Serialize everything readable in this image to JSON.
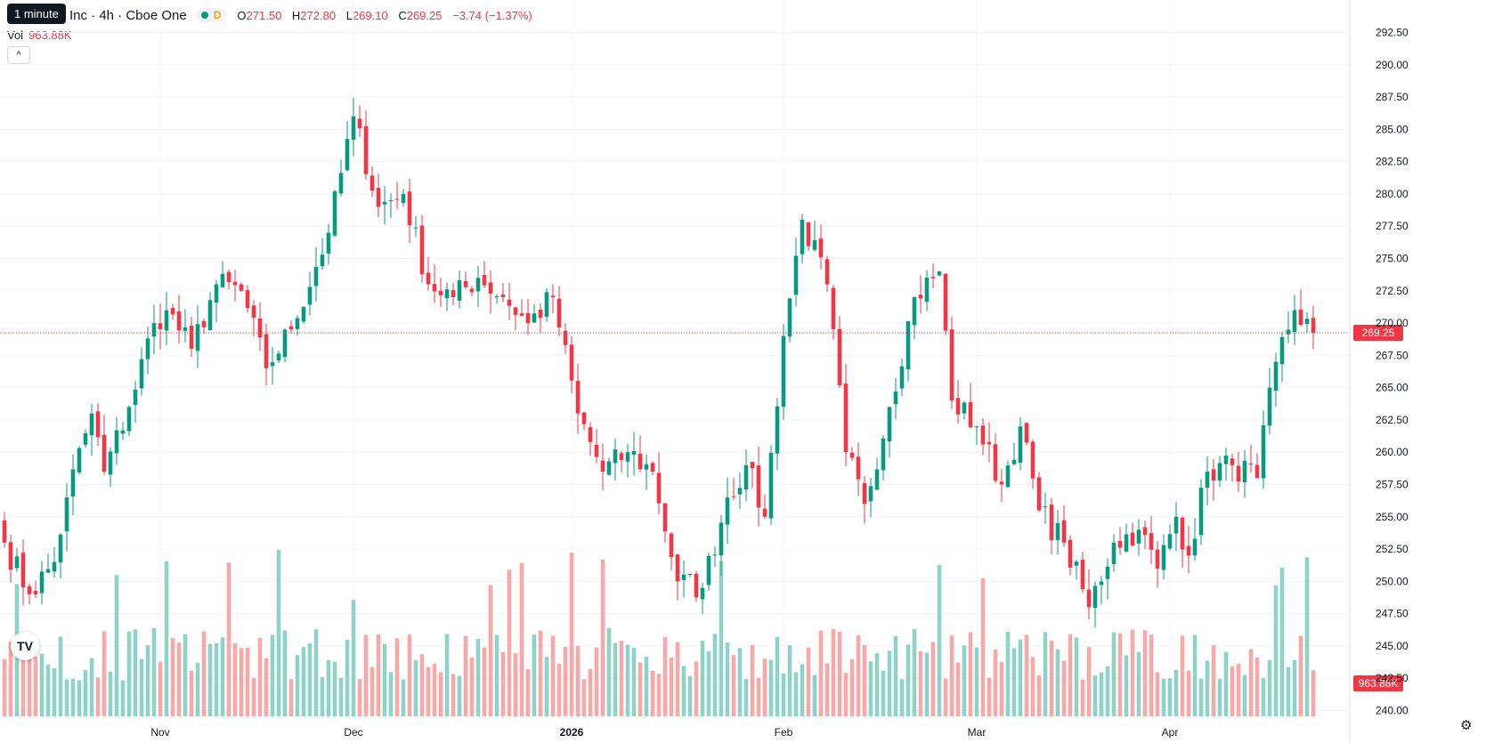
{
  "tooltip": "1 minute",
  "legend": {
    "symbol_name": "Inc · 4h · Cboe One",
    "d_letter": "D",
    "open_key": "O",
    "open_val": "271.50",
    "high_key": "H",
    "high_val": "272.80",
    "low_key": "L",
    "low_val": "269.10",
    "close_key": "C",
    "close_val": "269.25",
    "change": "−3.74 (−1.37%)"
  },
  "volume_legend": {
    "label": "Vol",
    "value": "963.88K"
  },
  "icons": {
    "collapse": "chevron-up-icon",
    "logo": "tradingview-logo-icon",
    "settings": "gear-icon"
  },
  "colors": {
    "up": "#089981",
    "down": "#f23645",
    "up_vol": "#8fd3c8",
    "down_vol": "#f7a9a7",
    "grid": "#f0f3fa"
  },
  "chart_data": {
    "type": "candlestick",
    "timeframe": "4h",
    "ylim": [
      239.0,
      293.5
    ],
    "y_ticks": [
      "240.00",
      "242.50",
      "245.00",
      "247.50",
      "250.00",
      "252.50",
      "255.00",
      "257.50",
      "260.00",
      "262.50",
      "265.00",
      "267.50",
      "270.00",
      "272.50",
      "275.00",
      "277.50",
      "280.00",
      "282.50",
      "285.00",
      "287.50",
      "290.00",
      "292.50"
    ],
    "x_ticks": [
      "Nov",
      "Dec",
      "2026",
      "Feb",
      "Mar",
      "Apr"
    ],
    "x_tick_bold": [
      false,
      false,
      true,
      false,
      false,
      false
    ],
    "x_tick_index": [
      25,
      56,
      91,
      125,
      156,
      187
    ],
    "last_price_label": "269.25",
    "last_volume_label": "963.88K",
    "grid": true,
    "anchors": [
      [
        0,
        253.0
      ],
      [
        4,
        249.0
      ],
      [
        8,
        251.5
      ],
      [
        10,
        256.5
      ],
      [
        14,
        263.0
      ],
      [
        16,
        258.5
      ],
      [
        20,
        263.5
      ],
      [
        24,
        270.0
      ],
      [
        26,
        271.0
      ],
      [
        30,
        268.0
      ],
      [
        34,
        273.0
      ],
      [
        38,
        272.5
      ],
      [
        42,
        266.5
      ],
      [
        46,
        269.5
      ],
      [
        52,
        277.0
      ],
      [
        56,
        286.0
      ],
      [
        60,
        279.0
      ],
      [
        64,
        280.0
      ],
      [
        68,
        273.0
      ],
      [
        72,
        272.0
      ],
      [
        76,
        273.5
      ],
      [
        80,
        272.0
      ],
      [
        84,
        270.0
      ],
      [
        88,
        272.0
      ],
      [
        92,
        263.0
      ],
      [
        96,
        258.5
      ],
      [
        100,
        260.0
      ],
      [
        104,
        258.5
      ],
      [
        108,
        250.0
      ],
      [
        112,
        249.5
      ],
      [
        116,
        256.5
      ],
      [
        119,
        259.0
      ],
      [
        122,
        255.0
      ],
      [
        125,
        269.0
      ],
      [
        128,
        278.0
      ],
      [
        132,
        273.0
      ],
      [
        135,
        260.0
      ],
      [
        138,
        256.0
      ],
      [
        142,
        263.5
      ],
      [
        146,
        272.0
      ],
      [
        150,
        274.0
      ],
      [
        152,
        264.0
      ],
      [
        156,
        262.0
      ],
      [
        160,
        257.5
      ],
      [
        163,
        262.0
      ],
      [
        166,
        255.5
      ],
      [
        170,
        253.0
      ],
      [
        174,
        248.0
      ],
      [
        178,
        253.0
      ],
      [
        182,
        254.0
      ],
      [
        185,
        251.0
      ],
      [
        188,
        255.0
      ],
      [
        190,
        252.0
      ],
      [
        193,
        258.5
      ],
      [
        197,
        259.0
      ],
      [
        201,
        258.0
      ],
      [
        204,
        267.0
      ],
      [
        207,
        271.0
      ],
      [
        210,
        269.25
      ]
    ],
    "volume_ylim": [
      0,
      1600000
    ]
  }
}
